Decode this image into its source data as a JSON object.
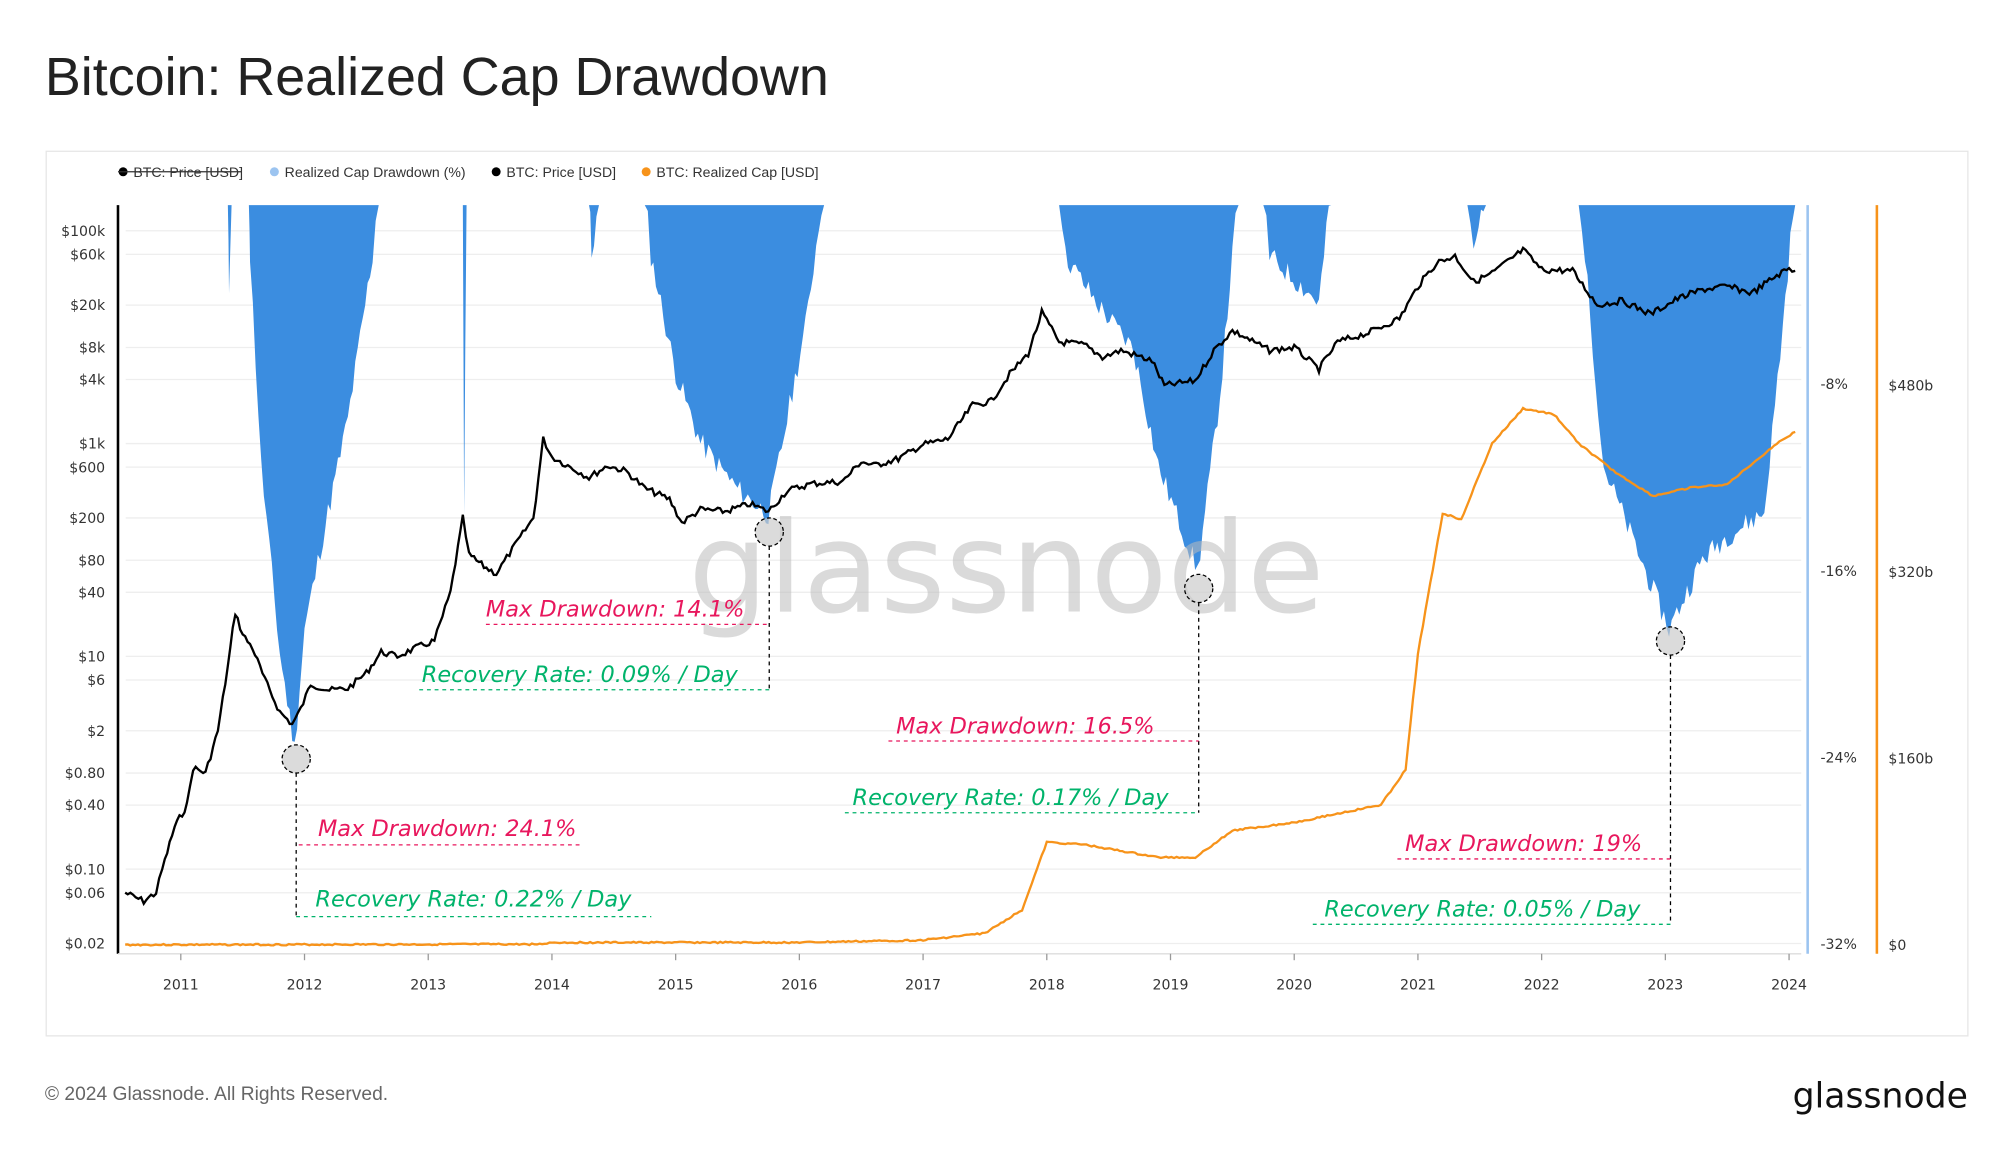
{
  "title": "Bitcoin: Realized Cap Drawdown",
  "footer": {
    "copyright": "© 2024 Glassnode. All Rights Reserved.",
    "logo_text": "glassnode"
  },
  "watermark": "glassnode",
  "legend": [
    {
      "label": "BTC: Price [USD]",
      "color": "#000000",
      "disabled": true
    },
    {
      "label": "Realized Cap Drawdown (%)",
      "color": "#9cc4f0"
    },
    {
      "label": "BTC: Price [USD]",
      "color": "#000000"
    },
    {
      "label": "BTC: Realized Cap [USD]",
      "color": "#f7931a"
    }
  ],
  "chart_data": {
    "type": "line",
    "title": "Bitcoin: Realized Cap Drawdown",
    "grid": true,
    "legend_position": "top-left",
    "x_ticks": [
      "2011",
      "2012",
      "2013",
      "2014",
      "2015",
      "2016",
      "2017",
      "2018",
      "2019",
      "2020",
      "2021",
      "2022",
      "2023",
      "2024"
    ],
    "y_left": {
      "scale": "log",
      "ticks": [
        "$100k",
        "$60k",
        "$20k",
        "$8k",
        "$4k",
        "$1k",
        "$600",
        "$200",
        "$80",
        "$40",
        "$10",
        "$6",
        "$2",
        "$0.80",
        "$0.40",
        "$0.10",
        "$0.06",
        "$0.02"
      ],
      "range": [
        0.02,
        100000
      ]
    },
    "y_drawdown": {
      "ticks": [
        "-8%",
        "-16%",
        "-24%",
        "-32%"
      ],
      "range": [
        -32,
        0
      ]
    },
    "y_realized_cap": {
      "ticks": [
        "$480b",
        "$320b",
        "$160b",
        "$0"
      ],
      "range": [
        0,
        640
      ]
    },
    "colors": {
      "price": "#000000",
      "drawdown": "#3b8de0",
      "realized_cap": "#f7931a"
    },
    "series": [
      {
        "name": "BTC: Price [USD]",
        "points": [
          [
            2010.55,
            0.06
          ],
          [
            2010.7,
            0.05
          ],
          [
            2010.8,
            0.06
          ],
          [
            2010.85,
            0.1
          ],
          [
            2010.95,
            0.25
          ],
          [
            2011.05,
            0.4
          ],
          [
            2011.1,
            0.9
          ],
          [
            2011.2,
            0.8
          ],
          [
            2011.3,
            2
          ],
          [
            2011.38,
            8
          ],
          [
            2011.44,
            26
          ],
          [
            2011.5,
            16
          ],
          [
            2011.58,
            12
          ],
          [
            2011.68,
            6
          ],
          [
            2011.8,
            3
          ],
          [
            2011.9,
            2.3
          ],
          [
            2011.97,
            3.2
          ],
          [
            2012.05,
            5.5
          ],
          [
            2012.2,
            4.8
          ],
          [
            2012.35,
            5
          ],
          [
            2012.5,
            7
          ],
          [
            2012.62,
            11
          ],
          [
            2012.75,
            10
          ],
          [
            2012.9,
            12
          ],
          [
            2013.05,
            14
          ],
          [
            2013.18,
            40
          ],
          [
            2013.28,
            200
          ],
          [
            2013.33,
            90
          ],
          [
            2013.45,
            70
          ],
          [
            2013.55,
            60
          ],
          [
            2013.7,
            110
          ],
          [
            2013.85,
            200
          ],
          [
            2013.93,
            1100
          ],
          [
            2014.0,
            750
          ],
          [
            2014.15,
            600
          ],
          [
            2014.3,
            480
          ],
          [
            2014.45,
            620
          ],
          [
            2014.6,
            550
          ],
          [
            2014.75,
            380
          ],
          [
            2014.95,
            300
          ],
          [
            2015.05,
            180
          ],
          [
            2015.2,
            240
          ],
          [
            2015.4,
            230
          ],
          [
            2015.6,
            270
          ],
          [
            2015.75,
            230
          ],
          [
            2015.9,
            360
          ],
          [
            2016.1,
            420
          ],
          [
            2016.35,
            440
          ],
          [
            2016.5,
            680
          ],
          [
            2016.6,
            620
          ],
          [
            2016.8,
            720
          ],
          [
            2017.0,
            980
          ],
          [
            2017.2,
            1100
          ],
          [
            2017.4,
            2300
          ],
          [
            2017.55,
            2500
          ],
          [
            2017.7,
            4500
          ],
          [
            2017.85,
            7000
          ],
          [
            2017.96,
            17000
          ],
          [
            2018.1,
            9000
          ],
          [
            2018.3,
            8500
          ],
          [
            2018.45,
            6500
          ],
          [
            2018.6,
            7500
          ],
          [
            2018.85,
            6000
          ],
          [
            2018.95,
            3500
          ],
          [
            2019.2,
            3900
          ],
          [
            2019.35,
            7500
          ],
          [
            2019.5,
            11500
          ],
          [
            2019.6,
            10000
          ],
          [
            2019.8,
            7500
          ],
          [
            2020.0,
            8000
          ],
          [
            2020.2,
            5000
          ],
          [
            2020.35,
            9000
          ],
          [
            2020.6,
            11000
          ],
          [
            2020.85,
            15000
          ],
          [
            2021.0,
            30000
          ],
          [
            2021.15,
            50000
          ],
          [
            2021.3,
            58000
          ],
          [
            2021.45,
            33000
          ],
          [
            2021.6,
            40000
          ],
          [
            2021.85,
            66000
          ],
          [
            2022.0,
            43000
          ],
          [
            2022.25,
            42000
          ],
          [
            2022.45,
            20000
          ],
          [
            2022.65,
            22000
          ],
          [
            2022.88,
            16500
          ],
          [
            2023.1,
            23000
          ],
          [
            2023.3,
            28000
          ],
          [
            2023.5,
            30000
          ],
          [
            2023.7,
            26000
          ],
          [
            2023.9,
            38000
          ],
          [
            2024.0,
            44000
          ],
          [
            2024.05,
            42000
          ]
        ]
      },
      {
        "name": "Realized Cap Drawdown (%)",
        "points": [
          [
            2011.38,
            0
          ],
          [
            2011.39,
            -5
          ],
          [
            2011.41,
            0
          ],
          [
            2011.55,
            0
          ],
          [
            2011.56,
            -3
          ],
          [
            2011.65,
            -12
          ],
          [
            2011.8,
            -20
          ],
          [
            2011.92,
            -24.1
          ],
          [
            2012.0,
            -19
          ],
          [
            2012.15,
            -15
          ],
          [
            2012.35,
            -10
          ],
          [
            2012.55,
            -3
          ],
          [
            2012.6,
            0
          ],
          [
            2013.28,
            0
          ],
          [
            2013.29,
            -14
          ],
          [
            2013.31,
            0
          ],
          [
            2014.3,
            0
          ],
          [
            2014.32,
            -3
          ],
          [
            2014.4,
            0
          ],
          [
            2014.75,
            0
          ],
          [
            2014.8,
            -3
          ],
          [
            2015.0,
            -8
          ],
          [
            2015.2,
            -11
          ],
          [
            2015.5,
            -13
          ],
          [
            2015.75,
            -14.1
          ],
          [
            2015.9,
            -10
          ],
          [
            2016.05,
            -6
          ],
          [
            2016.2,
            0
          ],
          [
            2018.1,
            0
          ],
          [
            2018.15,
            -3
          ],
          [
            2018.4,
            -5
          ],
          [
            2018.7,
            -7
          ],
          [
            2018.9,
            -12
          ],
          [
            2019.22,
            -16.5
          ],
          [
            2019.4,
            -9
          ],
          [
            2019.5,
            -3
          ],
          [
            2019.55,
            0
          ],
          [
            2019.75,
            0
          ],
          [
            2019.8,
            -3
          ],
          [
            2020.2,
            -5
          ],
          [
            2020.3,
            0
          ],
          [
            2021.4,
            0
          ],
          [
            2021.45,
            -3
          ],
          [
            2021.55,
            0
          ],
          [
            2022.3,
            0
          ],
          [
            2022.35,
            -3
          ],
          [
            2022.5,
            -12
          ],
          [
            2022.8,
            -16
          ],
          [
            2023.03,
            -19
          ],
          [
            2023.3,
            -16
          ],
          [
            2023.5,
            -15
          ],
          [
            2023.8,
            -14
          ],
          [
            2023.95,
            -6
          ],
          [
            2024.05,
            0
          ]
        ]
      },
      {
        "name": "BTC: Realized Cap [USD]",
        "unit": "billion USD",
        "points": [
          [
            2010.55,
            0
          ],
          [
            2013.9,
            0.5
          ],
          [
            2014.0,
            2
          ],
          [
            2016.0,
            2
          ],
          [
            2017.0,
            4
          ],
          [
            2017.5,
            10
          ],
          [
            2017.8,
            30
          ],
          [
            2018.0,
            88
          ],
          [
            2018.3,
            86
          ],
          [
            2018.9,
            75
          ],
          [
            2019.2,
            75
          ],
          [
            2019.5,
            98
          ],
          [
            2020.0,
            105
          ],
          [
            2020.7,
            120
          ],
          [
            2020.9,
            150
          ],
          [
            2021.0,
            250
          ],
          [
            2021.2,
            370
          ],
          [
            2021.35,
            365
          ],
          [
            2021.6,
            430
          ],
          [
            2021.85,
            460
          ],
          [
            2022.1,
            455
          ],
          [
            2022.3,
            430
          ],
          [
            2022.6,
            405
          ],
          [
            2022.9,
            385
          ],
          [
            2023.2,
            392
          ],
          [
            2023.5,
            395
          ],
          [
            2023.9,
            430
          ],
          [
            2024.05,
            440
          ]
        ]
      }
    ],
    "annotations": [
      {
        "max_drawdown": "Max Drawdown: 24.1%",
        "recovery_rate": "Recovery Rate: 0.22% / Day"
      },
      {
        "max_drawdown": "Max Drawdown: 14.1%",
        "recovery_rate": "Recovery Rate: 0.09% / Day"
      },
      {
        "max_drawdown": "Max Drawdown: 16.5%",
        "recovery_rate": "Recovery Rate: 0.17% / Day"
      },
      {
        "max_drawdown": "Max Drawdown: 19%",
        "recovery_rate": "Recovery Rate: 0.05% / Day"
      }
    ]
  }
}
